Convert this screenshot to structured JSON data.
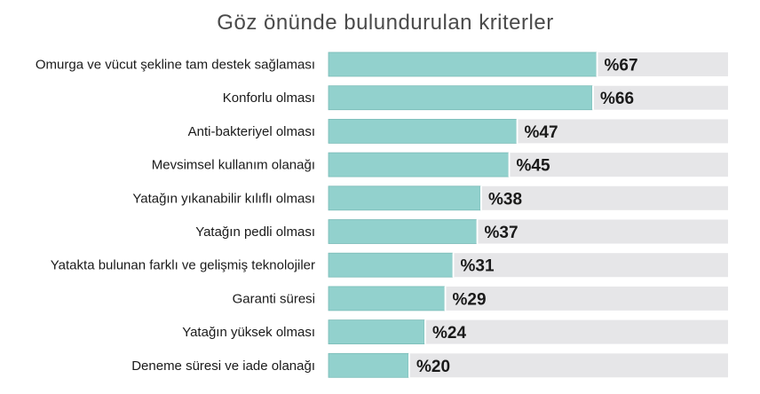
{
  "chart_data": {
    "type": "bar",
    "orientation": "horizontal",
    "title": "Göz önünde bulundurulan kriterler",
    "categories": [
      "Omurga ve vücut şekline tam destek sağlaması",
      "Konforlu olması",
      "Anti-bakteriyel olması",
      "Mevsimsel kullanım olanağı",
      "Yatağın yıkanabilir kılıflı olması",
      "Yatağın pedli olması",
      "Yatakta bulunan farklı ve gelişmiş teknolojiler",
      "Garanti süresi",
      "Yatağın yüksek olması",
      "Deneme süresi ve iade olanağı"
    ],
    "values": [
      67,
      66,
      47,
      45,
      38,
      37,
      31,
      29,
      24,
      20
    ],
    "value_labels": [
      "%67",
      "%66",
      "%47",
      "%45",
      "%38",
      "%37",
      "%31",
      "%29",
      "%24",
      "%20"
    ],
    "xlim": [
      0,
      100
    ],
    "grid": false,
    "legend": "none",
    "colors": {
      "bar": "#92d1cd",
      "bar_stroke": "#7bbcb8",
      "track": "#e6e6e8",
      "divider": "#ffffff"
    }
  }
}
